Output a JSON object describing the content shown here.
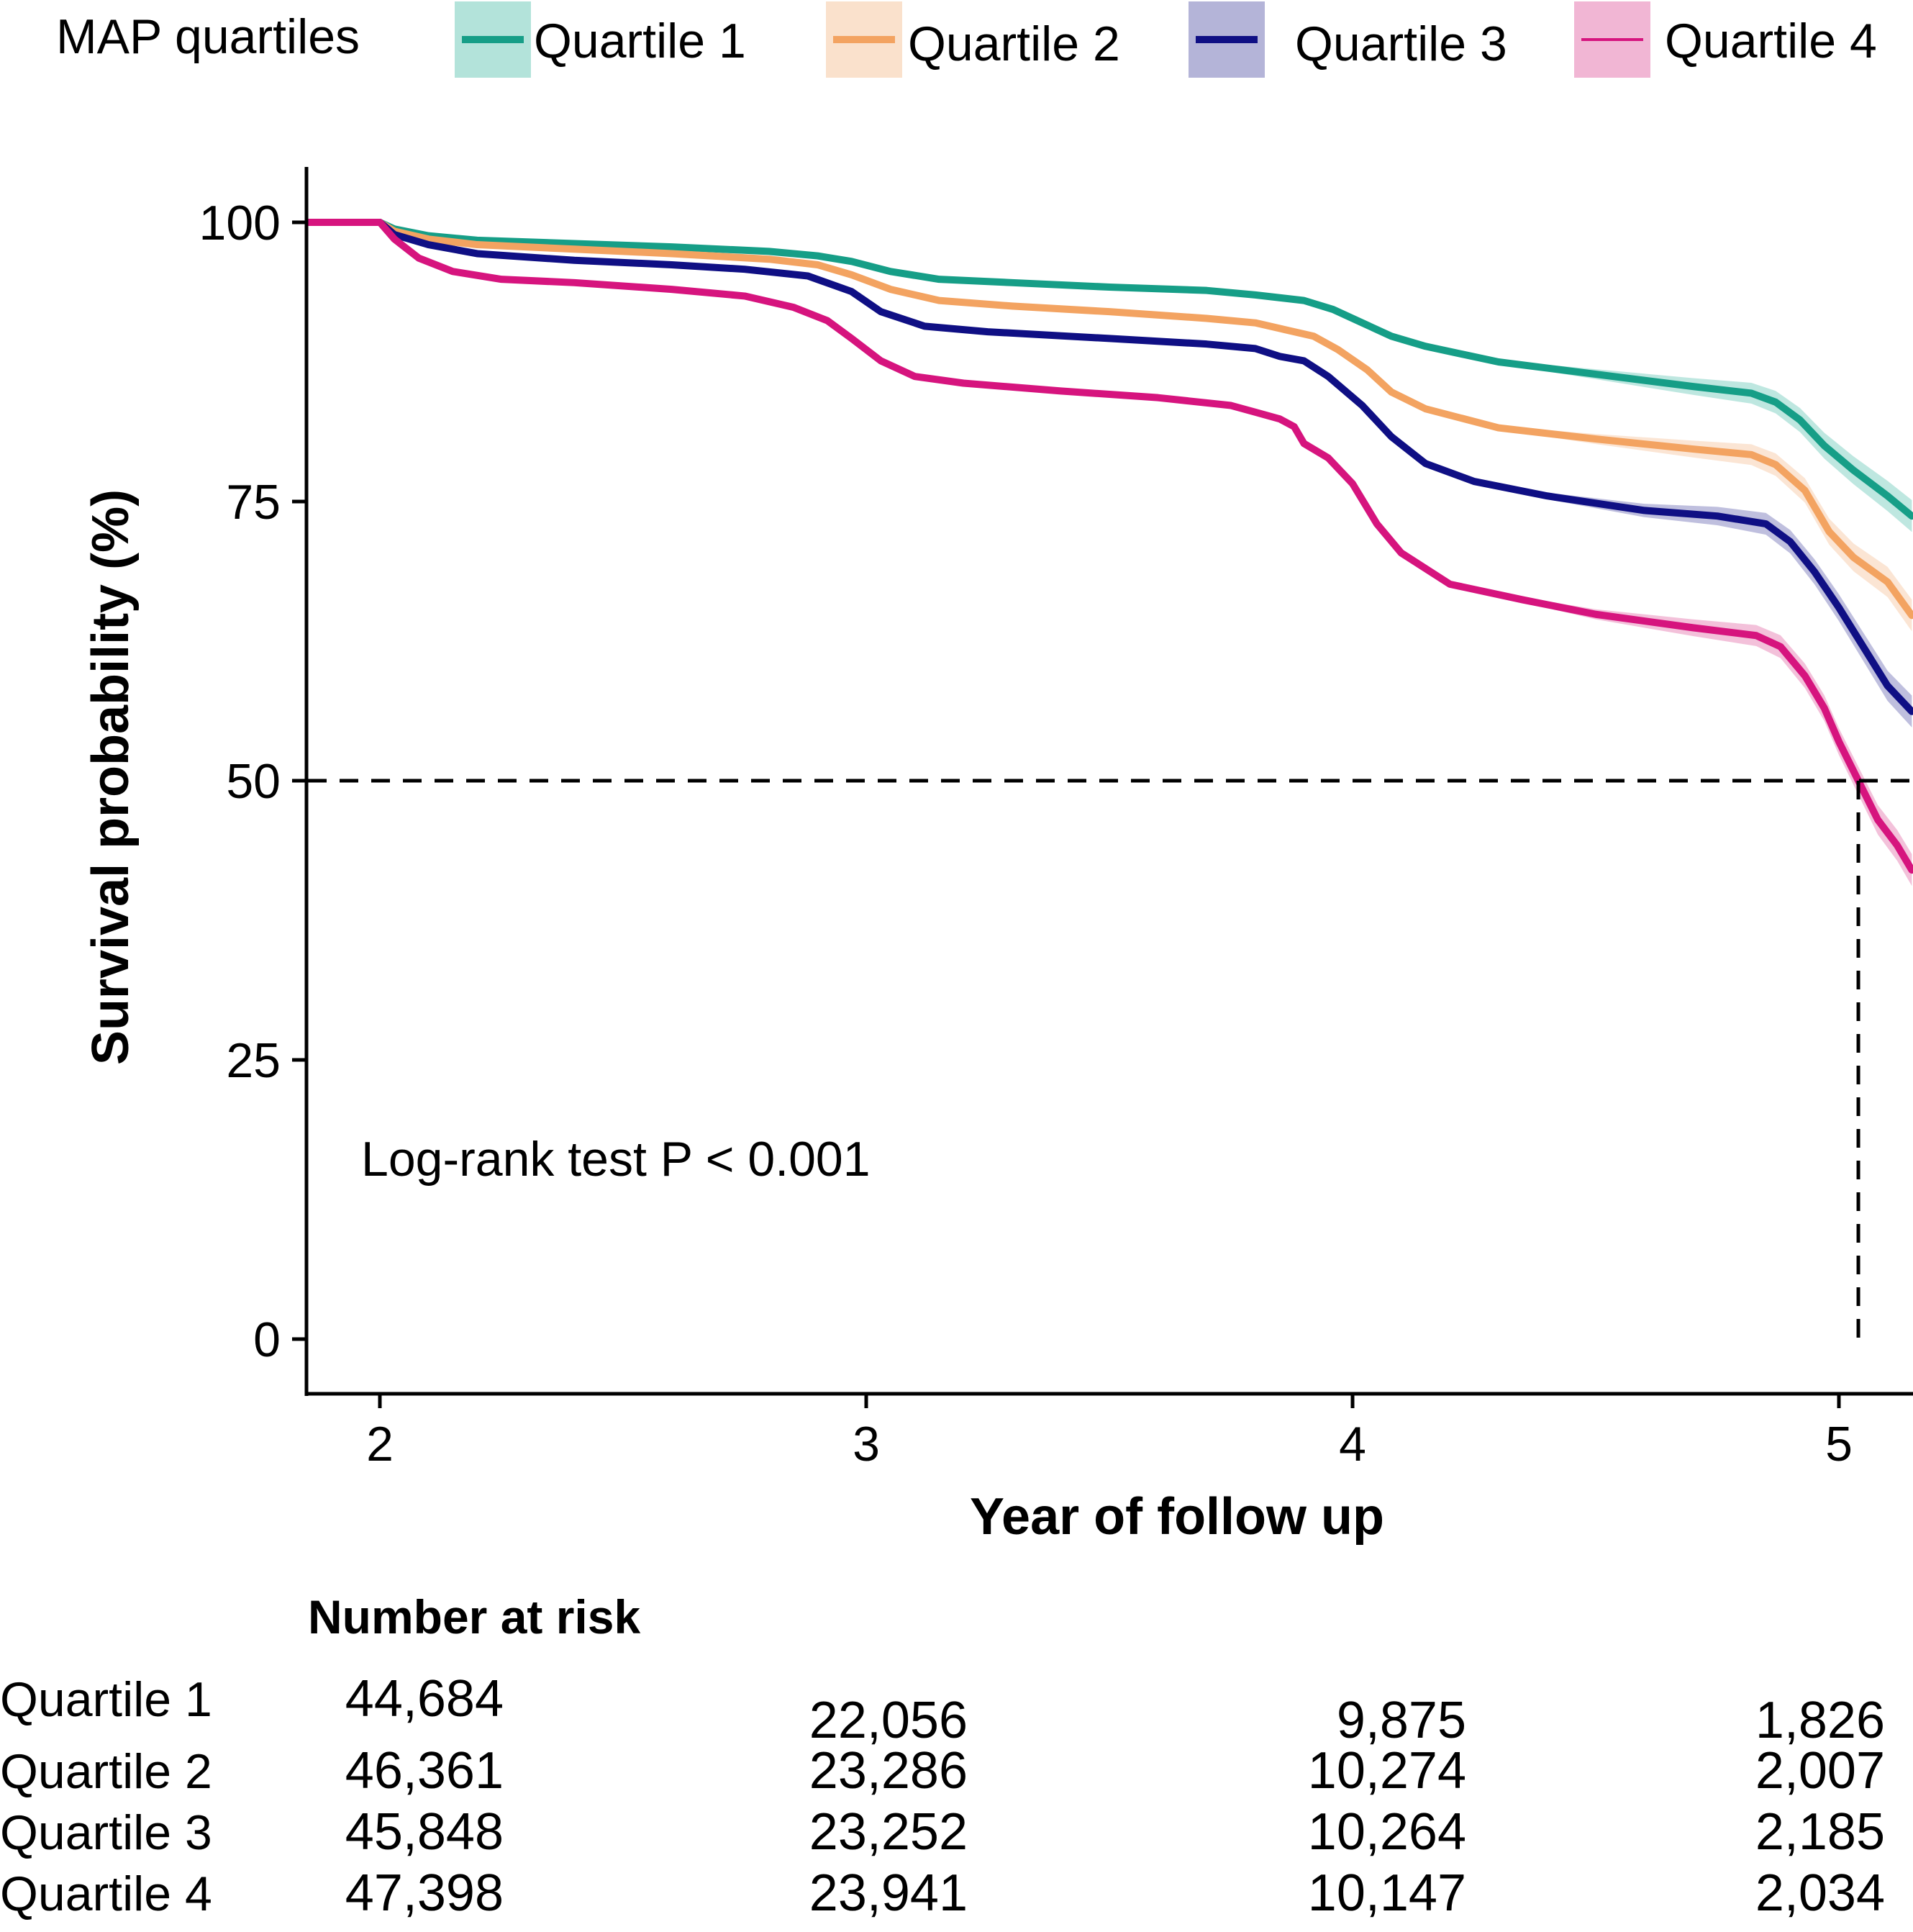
{
  "chart_data": {
    "type": "line",
    "subtype": "kaplan-meier",
    "legend": {
      "title": "MAP quartiles",
      "entries": [
        "Quartile 1",
        "Quartile 2",
        "Quartile 3",
        "Quartile 4"
      ]
    },
    "xlabel": "Year of follow up",
    "ylabel": "Survival probability (%)",
    "xlim": [
      1.85,
      5.15
    ],
    "ylim": [
      -5,
      105
    ],
    "x_ticks": [
      2,
      3,
      4,
      5
    ],
    "x_tick_labels": [
      "2",
      "3",
      "4",
      "5"
    ],
    "y_ticks": [
      0,
      25,
      50,
      75,
      100
    ],
    "y_tick_labels": [
      "0",
      "25",
      "50",
      "75",
      "100"
    ],
    "annotation": "Log-rank test P < 0.001",
    "median_line": {
      "y": 50,
      "x": 5.04
    },
    "series": [
      {
        "name": "Quartile 1",
        "color": "#169E87",
        "band_color": "#B3E3DA",
        "points": [
          [
            1.85,
            100
          ],
          [
            2.0,
            100
          ],
          [
            2.03,
            99.4
          ],
          [
            2.1,
            98.8
          ],
          [
            2.2,
            98.4
          ],
          [
            2.4,
            98.1
          ],
          [
            2.6,
            97.8
          ],
          [
            2.8,
            97.4
          ],
          [
            2.9,
            97.0
          ],
          [
            2.97,
            96.5
          ],
          [
            3.05,
            95.6
          ],
          [
            3.15,
            94.9
          ],
          [
            3.3,
            94.6
          ],
          [
            3.5,
            94.2
          ],
          [
            3.7,
            93.9
          ],
          [
            3.8,
            93.5
          ],
          [
            3.9,
            93.0
          ],
          [
            3.96,
            92.2
          ],
          [
            4.02,
            91.0
          ],
          [
            4.08,
            89.8
          ],
          [
            4.15,
            88.9
          ],
          [
            4.3,
            87.5
          ],
          [
            4.5,
            86.4
          ],
          [
            4.7,
            85.3
          ],
          [
            4.82,
            84.7
          ],
          [
            4.87,
            83.9
          ],
          [
            4.92,
            82.3
          ],
          [
            4.97,
            80.0
          ],
          [
            5.03,
            77.8
          ],
          [
            5.1,
            75.5
          ],
          [
            5.15,
            73.7
          ]
        ]
      },
      {
        "name": "Quartile 2",
        "color": "#F3A361",
        "band_color": "#FAE1CC",
        "points": [
          [
            1.85,
            100
          ],
          [
            2.0,
            100
          ],
          [
            2.03,
            99.2
          ],
          [
            2.1,
            98.5
          ],
          [
            2.2,
            98.0
          ],
          [
            2.4,
            97.6
          ],
          [
            2.6,
            97.2
          ],
          [
            2.8,
            96.7
          ],
          [
            2.9,
            96.2
          ],
          [
            2.97,
            95.3
          ],
          [
            3.05,
            94.0
          ],
          [
            3.15,
            93.0
          ],
          [
            3.3,
            92.5
          ],
          [
            3.5,
            92.0
          ],
          [
            3.7,
            91.4
          ],
          [
            3.8,
            91.0
          ],
          [
            3.86,
            90.4
          ],
          [
            3.92,
            89.8
          ],
          [
            3.97,
            88.6
          ],
          [
            4.03,
            86.8
          ],
          [
            4.08,
            84.8
          ],
          [
            4.15,
            83.3
          ],
          [
            4.3,
            81.6
          ],
          [
            4.5,
            80.6
          ],
          [
            4.7,
            79.7
          ],
          [
            4.82,
            79.2
          ],
          [
            4.87,
            78.3
          ],
          [
            4.93,
            76.0
          ],
          [
            4.98,
            72.3
          ],
          [
            5.03,
            70.0
          ],
          [
            5.1,
            67.8
          ],
          [
            5.15,
            64.8
          ]
        ]
      },
      {
        "name": "Quartile 3",
        "color": "#0F0F84",
        "band_color": "#B4B4D8",
        "points": [
          [
            1.85,
            100
          ],
          [
            2.0,
            100
          ],
          [
            2.03,
            98.9
          ],
          [
            2.1,
            98.0
          ],
          [
            2.2,
            97.2
          ],
          [
            2.4,
            96.6
          ],
          [
            2.6,
            96.2
          ],
          [
            2.75,
            95.8
          ],
          [
            2.88,
            95.2
          ],
          [
            2.97,
            93.8
          ],
          [
            3.03,
            92.0
          ],
          [
            3.12,
            90.7
          ],
          [
            3.25,
            90.2
          ],
          [
            3.5,
            89.6
          ],
          [
            3.7,
            89.1
          ],
          [
            3.8,
            88.7
          ],
          [
            3.85,
            88.0
          ],
          [
            3.9,
            87.6
          ],
          [
            3.95,
            86.2
          ],
          [
            4.02,
            83.6
          ],
          [
            4.08,
            80.8
          ],
          [
            4.15,
            78.4
          ],
          [
            4.25,
            76.8
          ],
          [
            4.4,
            75.5
          ],
          [
            4.6,
            74.2
          ],
          [
            4.75,
            73.7
          ],
          [
            4.85,
            73.0
          ],
          [
            4.9,
            71.4
          ],
          [
            4.95,
            68.7
          ],
          [
            5.0,
            65.5
          ],
          [
            5.05,
            62.0
          ],
          [
            5.1,
            58.5
          ],
          [
            5.15,
            56.2
          ]
        ]
      },
      {
        "name": "Quartile 4",
        "color": "#D6147E",
        "band_color": "#F1B6D4",
        "points": [
          [
            1.85,
            100
          ],
          [
            2.0,
            100
          ],
          [
            2.03,
            98.5
          ],
          [
            2.08,
            96.8
          ],
          [
            2.15,
            95.6
          ],
          [
            2.25,
            94.9
          ],
          [
            2.4,
            94.6
          ],
          [
            2.6,
            94.0
          ],
          [
            2.75,
            93.4
          ],
          [
            2.85,
            92.4
          ],
          [
            2.92,
            91.2
          ],
          [
            2.97,
            89.6
          ],
          [
            3.03,
            87.6
          ],
          [
            3.1,
            86.2
          ],
          [
            3.2,
            85.6
          ],
          [
            3.4,
            84.9
          ],
          [
            3.6,
            84.3
          ],
          [
            3.75,
            83.6
          ],
          [
            3.8,
            83.0
          ],
          [
            3.85,
            82.4
          ],
          [
            3.88,
            81.7
          ],
          [
            3.9,
            80.2
          ],
          [
            3.95,
            78.9
          ],
          [
            4.0,
            76.6
          ],
          [
            4.05,
            73.0
          ],
          [
            4.1,
            70.4
          ],
          [
            4.2,
            67.6
          ],
          [
            4.35,
            66.2
          ],
          [
            4.5,
            64.9
          ],
          [
            4.7,
            63.7
          ],
          [
            4.83,
            63.0
          ],
          [
            4.88,
            62.0
          ],
          [
            4.93,
            59.4
          ],
          [
            4.97,
            56.5
          ],
          [
            5.0,
            53.5
          ],
          [
            5.04,
            50.0
          ],
          [
            5.08,
            46.5
          ],
          [
            5.12,
            44.2
          ],
          [
            5.15,
            42.0
          ]
        ]
      }
    ]
  },
  "risk_table": {
    "title": "Number at risk",
    "rows": [
      {
        "label": "Quartile 1",
        "values": [
          "44,684",
          "22,056",
          "9,875",
          "1,826"
        ]
      },
      {
        "label": "Quartile 2",
        "values": [
          "46,361",
          "23,286",
          "10,274",
          "2,007"
        ]
      },
      {
        "label": "Quartile 3",
        "values": [
          "45,848",
          "23,252",
          "10,264",
          "2,185"
        ]
      },
      {
        "label": "Quartile 4",
        "values": [
          "47,398",
          "23,941",
          "10,147",
          "2,034"
        ]
      }
    ]
  }
}
